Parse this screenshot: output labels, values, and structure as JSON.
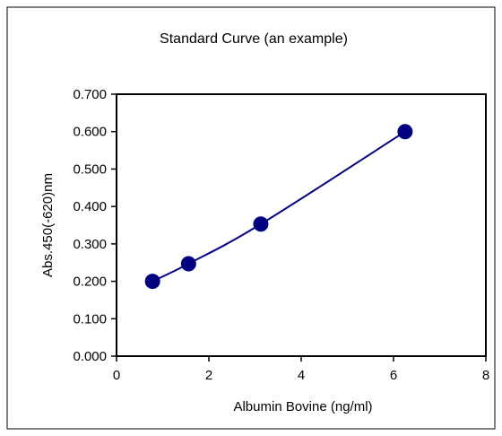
{
  "chart_data": {
    "type": "line",
    "title": "Standard Curve (an example)",
    "xlabel": "Albumin Bovine (ng/ml)",
    "ylabel": "Abs.450(-620)nm",
    "xlim": [
      0,
      8
    ],
    "ylim": [
      0,
      0.7
    ],
    "x_ticks": [
      "0",
      "2",
      "4",
      "6",
      "8"
    ],
    "y_ticks": [
      "0.000",
      "0.100",
      "0.200",
      "0.300",
      "0.400",
      "0.500",
      "0.600",
      "0.700"
    ],
    "grid": false,
    "legend": "none",
    "series": [
      {
        "x": [
          0.78,
          1.56,
          3.125,
          6.25
        ],
        "y": [
          0.2,
          0.247,
          0.353,
          0.6
        ],
        "color": "#000080",
        "marker": "circle",
        "smooth": true
      }
    ]
  }
}
